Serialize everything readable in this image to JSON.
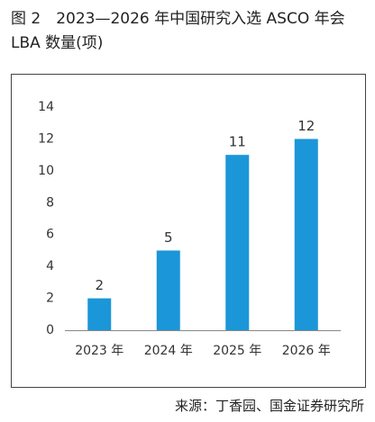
{
  "chart_data": {
    "type": "bar",
    "title": "图 2　2023—2026 年中国研究入选 ASCO 年会 LBA 数量(项)",
    "categories": [
      "2023 年",
      "2024 年",
      "2025 年",
      "2026 年"
    ],
    "values": [
      2,
      5,
      11,
      12
    ],
    "color": "#1b96d8",
    "ylim": [
      0,
      14
    ],
    "yticks": [
      0,
      2,
      4,
      6,
      8,
      10,
      12,
      14
    ],
    "grid": false,
    "source": "来源：丁香园、国金证券研究所"
  }
}
